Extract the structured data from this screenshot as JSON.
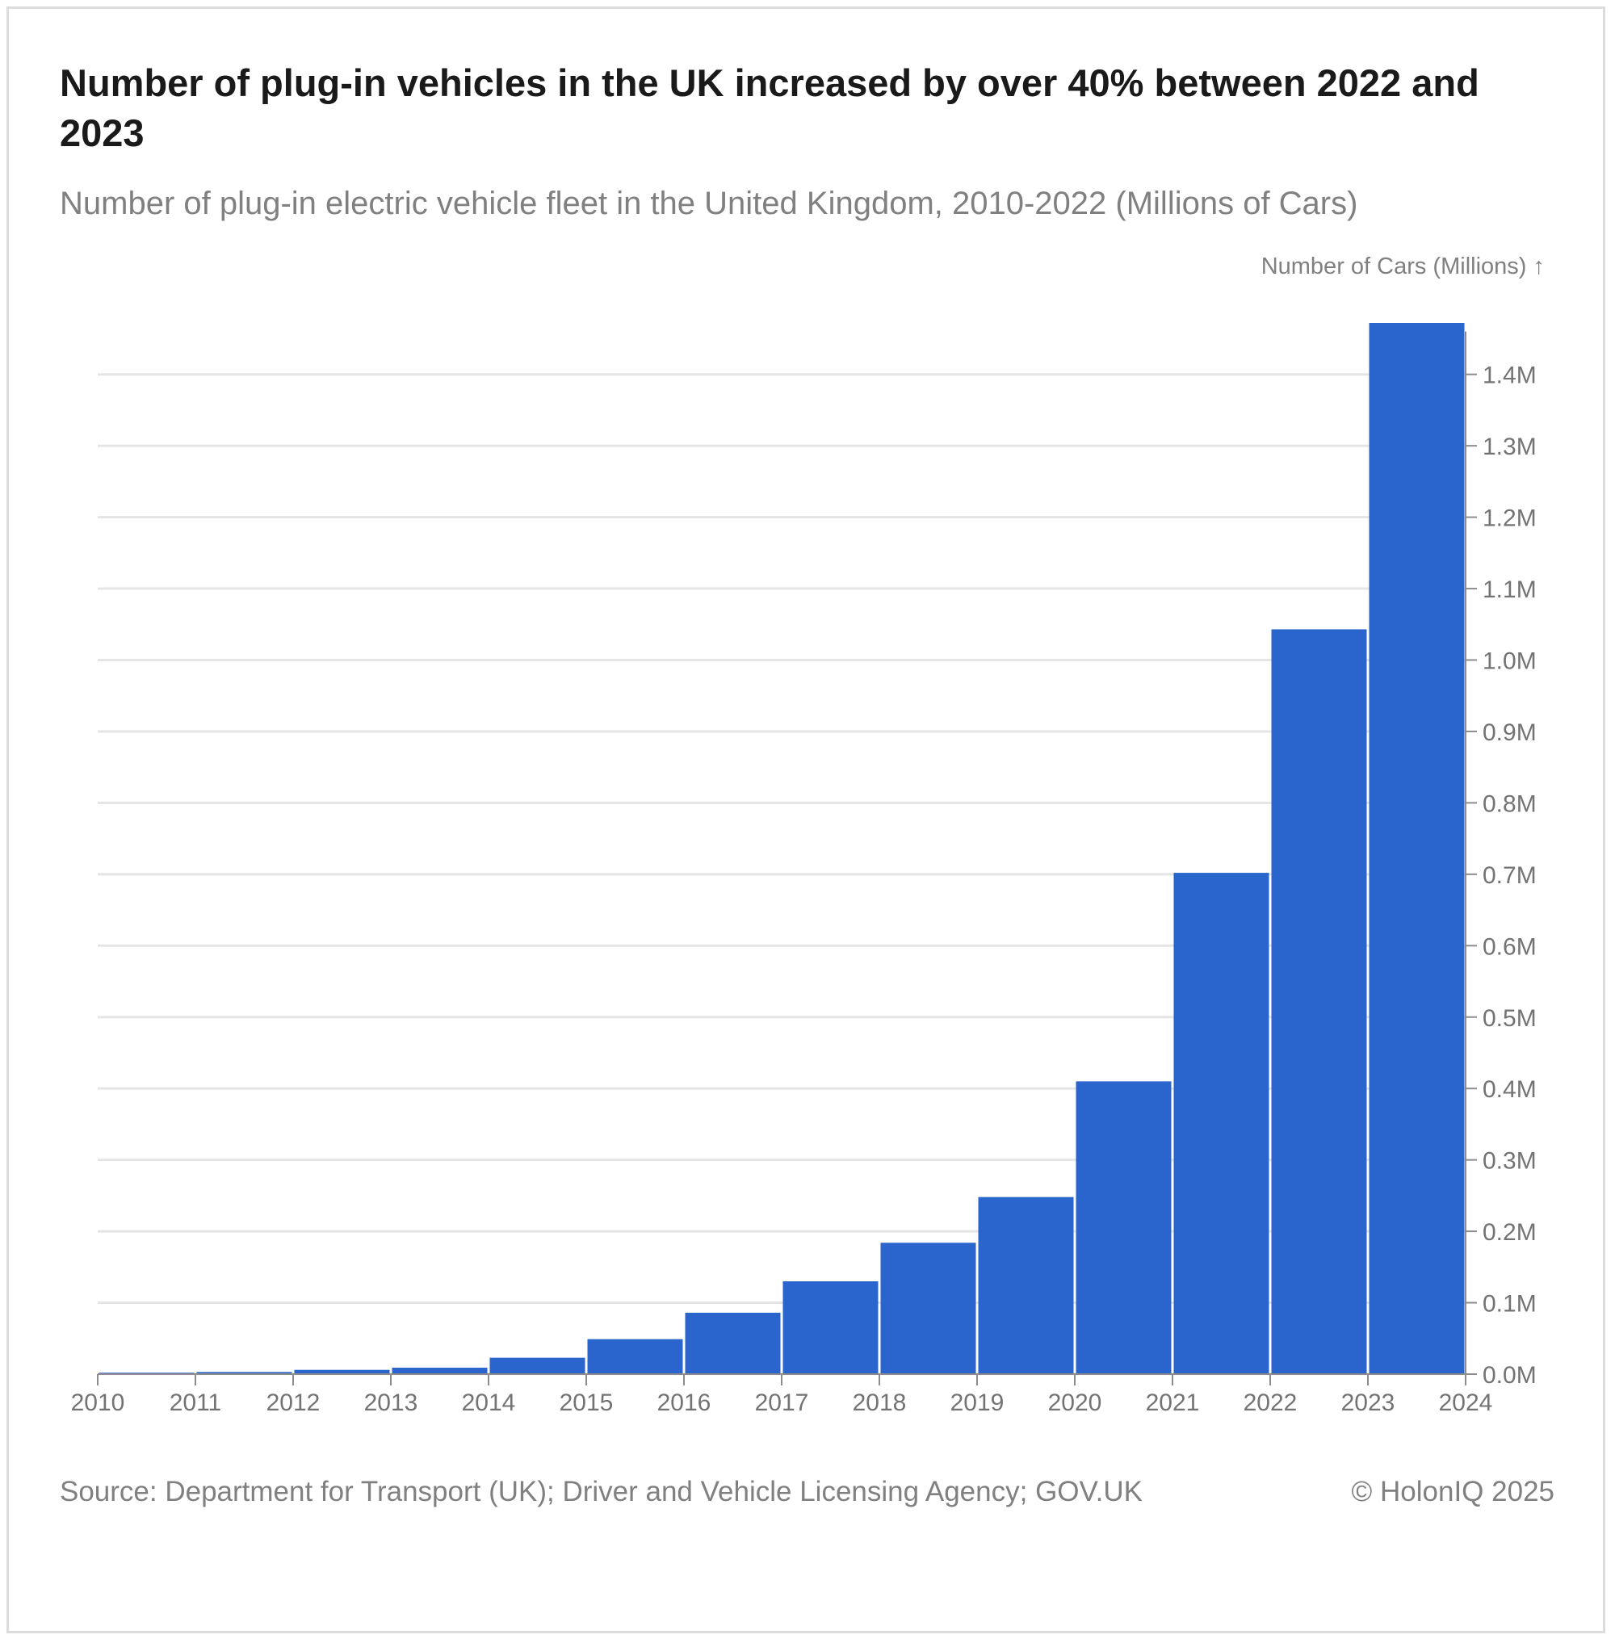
{
  "title": "Number of plug-in vehicles in the UK increased by over 40% between 2022 and 2023",
  "subtitle": "Number of plug-in electric vehicle fleet in the United Kingdom, 2010-2022 (Millions of Cars)",
  "source": "Source: Department for Transport (UK); Driver and Vehicle Licensing Agency; GOV.UK",
  "copyright": "© HolonIQ 2025",
  "chart_data": {
    "type": "bar",
    "title": "Number of plug-in vehicles in the UK increased by over 40% between 2022 and 2023",
    "subtitle": "Number of plug-in electric vehicle fleet in the United Kingdom, 2010-2022 (Millions of Cars)",
    "ylabel": "Number of Cars (Millions) ↑",
    "xlabel": "",
    "x_ticks": [
      "2010",
      "2011",
      "2012",
      "2013",
      "2014",
      "2015",
      "2016",
      "2017",
      "2018",
      "2019",
      "2020",
      "2021",
      "2022",
      "2023",
      "2024"
    ],
    "y_ticks": [
      "0.0M",
      "0.1M",
      "0.2M",
      "0.3M",
      "0.4M",
      "0.5M",
      "0.6M",
      "0.7M",
      "0.8M",
      "0.9M",
      "1.0M",
      "1.1M",
      "1.2M",
      "1.3M",
      "1.4M"
    ],
    "y_tick_values": [
      0,
      0.1,
      0.2,
      0.3,
      0.4,
      0.5,
      0.6,
      0.7,
      0.8,
      0.9,
      1.0,
      1.1,
      1.2,
      1.3,
      1.4
    ],
    "bars": [
      {
        "start": 2010,
        "end": 2011,
        "value": 0.002
      },
      {
        "start": 2011,
        "end": 2012,
        "value": 0.003
      },
      {
        "start": 2012,
        "end": 2013,
        "value": 0.006
      },
      {
        "start": 2013,
        "end": 2014,
        "value": 0.009
      },
      {
        "start": 2014,
        "end": 2015,
        "value": 0.023
      },
      {
        "start": 2015,
        "end": 2016,
        "value": 0.049
      },
      {
        "start": 2016,
        "end": 2017,
        "value": 0.086
      },
      {
        "start": 2017,
        "end": 2018,
        "value": 0.13
      },
      {
        "start": 2018,
        "end": 2019,
        "value": 0.184
      },
      {
        "start": 2019,
        "end": 2020,
        "value": 0.248
      },
      {
        "start": 2020,
        "end": 2021,
        "value": 0.41
      },
      {
        "start": 2021,
        "end": 2022,
        "value": 0.702
      },
      {
        "start": 2022,
        "end": 2023,
        "value": 1.043
      },
      {
        "start": 2023,
        "end": 2024,
        "value": 1.472
      }
    ],
    "ylim": [
      0,
      1.5
    ],
    "xlim": [
      2010,
      2024
    ],
    "y_axis_side": "right",
    "grid": true,
    "legend": "none",
    "bar_color": "#2965cc",
    "grid_color": "#e5e5e5",
    "axis_color": "#8c8c8c",
    "tick_label_color": "#737373"
  }
}
